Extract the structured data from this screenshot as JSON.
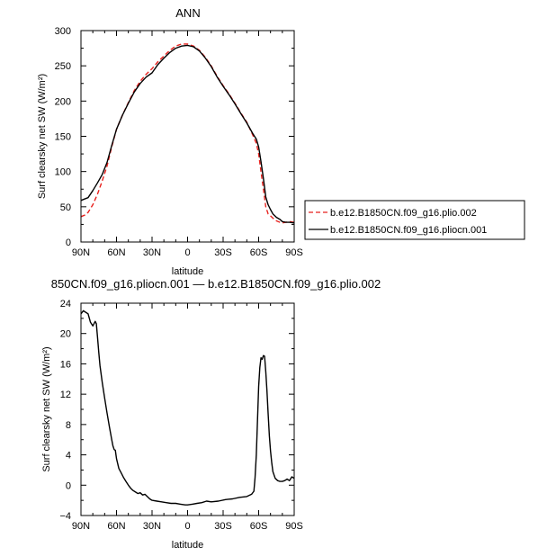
{
  "colors": {
    "control": "#e8211d",
    "experiment": "#000000",
    "frame": "#000000"
  },
  "legend": {
    "entries": [
      {
        "label": "b.e12.B1850CN.f09_g16.plio.002",
        "style": "dashed",
        "color": "#e8211d"
      },
      {
        "label": "b.e12.B1850CN.f09_g16.pliocn.001",
        "style": "solid",
        "color": "#000000"
      }
    ]
  },
  "chart_data": [
    {
      "type": "line",
      "title": "ANN",
      "xlabel": "latitude",
      "ylabel": "Surf clearsky net SW (W/m²)",
      "xlim": [
        90,
        -90
      ],
      "ylim": [
        0,
        300
      ],
      "xticks": [
        90,
        60,
        30,
        0,
        -30,
        -60,
        -90
      ],
      "xtick_labels": [
        "90N",
        "60N",
        "30N",
        "0",
        "30S",
        "60S",
        "90S"
      ],
      "yticks": [
        0,
        50,
        100,
        150,
        200,
        250,
        300
      ],
      "ytick_labels": [
        "0",
        "50",
        "100",
        "150",
        "200",
        "250",
        "300"
      ],
      "grid": false,
      "legend_position": "right",
      "series": [
        {
          "name": "b.e12.B1850CN.f09_g16.plio.002",
          "style": "dashed",
          "x": [
            90,
            87,
            84,
            80,
            76,
            72,
            68,
            64,
            60,
            55,
            50,
            45,
            40,
            35,
            30,
            25,
            20,
            15,
            10,
            5,
            0,
            -5,
            -10,
            -15,
            -20,
            -25,
            -30,
            -35,
            -40,
            -45,
            -50,
            -55,
            -58,
            -60,
            -62,
            -64,
            -66,
            -68,
            -70,
            -72,
            -75,
            -78,
            -80,
            -83,
            -86,
            -90
          ],
          "y": [
            36,
            38,
            42,
            53,
            68,
            87,
            108,
            135,
            160,
            180,
            198,
            215,
            228,
            238,
            246,
            256,
            264,
            272,
            278,
            281,
            281,
            278,
            272,
            262,
            250,
            235,
            222,
            210,
            197,
            183,
            170,
            152,
            140,
            125,
            100,
            75,
            50,
            40,
            37,
            34,
            30,
            28,
            27,
            28,
            29,
            28
          ]
        },
        {
          "name": "b.e12.B1850CN.f09_g16.pliocn.001",
          "style": "solid",
          "x": [
            90,
            87,
            84,
            80,
            76,
            72,
            68,
            64,
            60,
            55,
            50,
            45,
            40,
            35,
            30,
            25,
            20,
            15,
            10,
            5,
            0,
            -5,
            -10,
            -15,
            -20,
            -25,
            -30,
            -35,
            -40,
            -45,
            -50,
            -55,
            -58,
            -60,
            -62,
            -64,
            -66,
            -68,
            -70,
            -72,
            -75,
            -78,
            -80,
            -83,
            -86,
            -90
          ],
          "y": [
            59,
            61,
            63,
            73,
            84,
            96,
            113,
            137,
            160,
            180,
            197,
            213,
            225,
            234,
            240,
            252,
            261,
            269,
            275,
            278,
            279,
            277,
            271,
            261,
            249,
            234,
            221,
            209,
            196,
            182,
            169,
            154,
            146,
            135,
            114,
            90,
            64,
            53,
            46,
            40,
            35,
            32,
            29,
            28,
            28,
            27
          ]
        }
      ]
    },
    {
      "type": "line",
      "title": "850CN.f09_g16.pliocn.001 — b.e12.B1850CN.f09_g16.plio.002",
      "xlabel": "latitude",
      "ylabel": "Surf clearsky net SW (W/m²)",
      "xlim": [
        90,
        -90
      ],
      "ylim": [
        -4,
        24
      ],
      "xticks": [
        90,
        60,
        30,
        0,
        -30,
        -60,
        -90
      ],
      "xtick_labels": [
        "90N",
        "60N",
        "30N",
        "0",
        "30S",
        "60S",
        "90S"
      ],
      "yticks": [
        -4,
        0,
        4,
        8,
        12,
        16,
        20,
        24
      ],
      "ytick_labels": [
        "−4",
        "0",
        "4",
        "8",
        "12",
        "16",
        "20",
        "24"
      ],
      "grid": false,
      "series": [
        {
          "name": "",
          "style": "solid",
          "x": [
            90,
            88,
            86,
            84,
            82,
            80,
            78,
            77,
            76,
            75,
            74,
            72,
            70,
            68,
            66,
            64,
            63,
            62,
            61,
            60,
            58,
            56,
            54,
            52,
            50,
            48,
            46,
            44,
            42,
            40,
            38,
            36,
            34,
            32,
            30,
            26,
            22,
            18,
            14,
            10,
            6,
            2,
            0,
            -4,
            -8,
            -12,
            -16,
            -20,
            -26,
            -32,
            -38,
            -44,
            -50,
            -54,
            -56,
            -57,
            -58,
            -59,
            -60,
            -61,
            -62,
            -63,
            -64,
            -65,
            -66,
            -67,
            -68,
            -69,
            -70,
            -71,
            -72,
            -74,
            -76,
            -78,
            -80,
            -82,
            -84,
            -86,
            -88,
            -90
          ],
          "y": [
            22.6,
            23.0,
            22.8,
            22.6,
            21.5,
            21.0,
            21.6,
            21.3,
            19.5,
            17.5,
            15.8,
            13.5,
            11.5,
            9.5,
            7.7,
            6.0,
            5.2,
            4.7,
            4.6,
            3.5,
            2.2,
            1.6,
            1.0,
            0.5,
            0.0,
            -0.4,
            -0.7,
            -0.9,
            -1.1,
            -1.0,
            -1.3,
            -1.2,
            -1.5,
            -1.8,
            -2.0,
            -2.1,
            -2.2,
            -2.3,
            -2.4,
            -2.4,
            -2.5,
            -2.6,
            -2.6,
            -2.5,
            -2.4,
            -2.3,
            -2.1,
            -2.2,
            -2.1,
            -1.9,
            -1.8,
            -1.6,
            -1.5,
            -1.2,
            -0.8,
            1.0,
            4.0,
            8.5,
            13.0,
            15.5,
            16.8,
            16.6,
            17.1,
            17.0,
            15.0,
            12.5,
            9.5,
            6.5,
            4.5,
            3.0,
            1.8,
            0.9,
            0.6,
            0.5,
            0.5,
            0.6,
            0.8,
            0.6,
            1.1,
            0.9
          ]
        }
      ]
    }
  ]
}
